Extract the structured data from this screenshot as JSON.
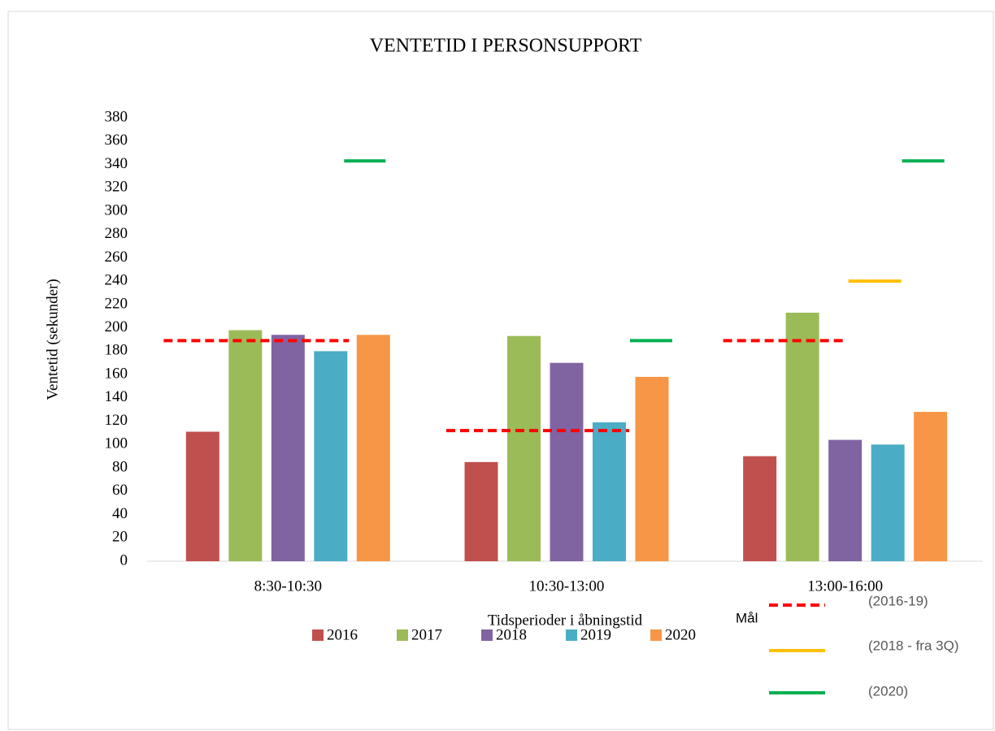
{
  "chart_data": {
    "type": "bar",
    "title": "VENTETID I PERSONSUPPORT",
    "y_label": "Ventetid (sekunder)",
    "x_label": "Tidsperioder i åbningstid",
    "categories": [
      "8:30-10:30",
      "10:30-13:00",
      "13:00-16:00"
    ],
    "series": [
      {
        "name": "2016",
        "color": "#c0504d",
        "values": [
          111,
          85,
          90
        ]
      },
      {
        "name": "2017",
        "color": "#9bbb59",
        "values": [
          198,
          193,
          213
        ]
      },
      {
        "name": "2018",
        "color": "#8064a2",
        "values": [
          194,
          170,
          104
        ]
      },
      {
        "name": "2019",
        "color": "#4bacc6",
        "values": [
          180,
          119,
          100
        ]
      },
      {
        "name": "2020",
        "color": "#f79646",
        "values": [
          194,
          158,
          128
        ]
      }
    ],
    "goal_label": "Mål",
    "targets": [
      {
        "name": "(2016-19)",
        "color": "#ff0000",
        "dashed": true,
        "values": [
          189,
          112,
          189
        ]
      },
      {
        "name": "(2018 - fra 3Q)",
        "color": "#ffc000",
        "dashed": false,
        "values": [
          null,
          null,
          240
        ]
      },
      {
        "name": "(2020)",
        "color": "#00b050",
        "dashed": false,
        "values": [
          343,
          189,
          343
        ]
      }
    ],
    "ylim": [
      0,
      380
    ],
    "yticks": [
      0,
      20,
      40,
      60,
      80,
      100,
      120,
      140,
      160,
      180,
      200,
      220,
      240,
      260,
      280,
      300,
      320,
      340,
      360,
      380
    ]
  }
}
